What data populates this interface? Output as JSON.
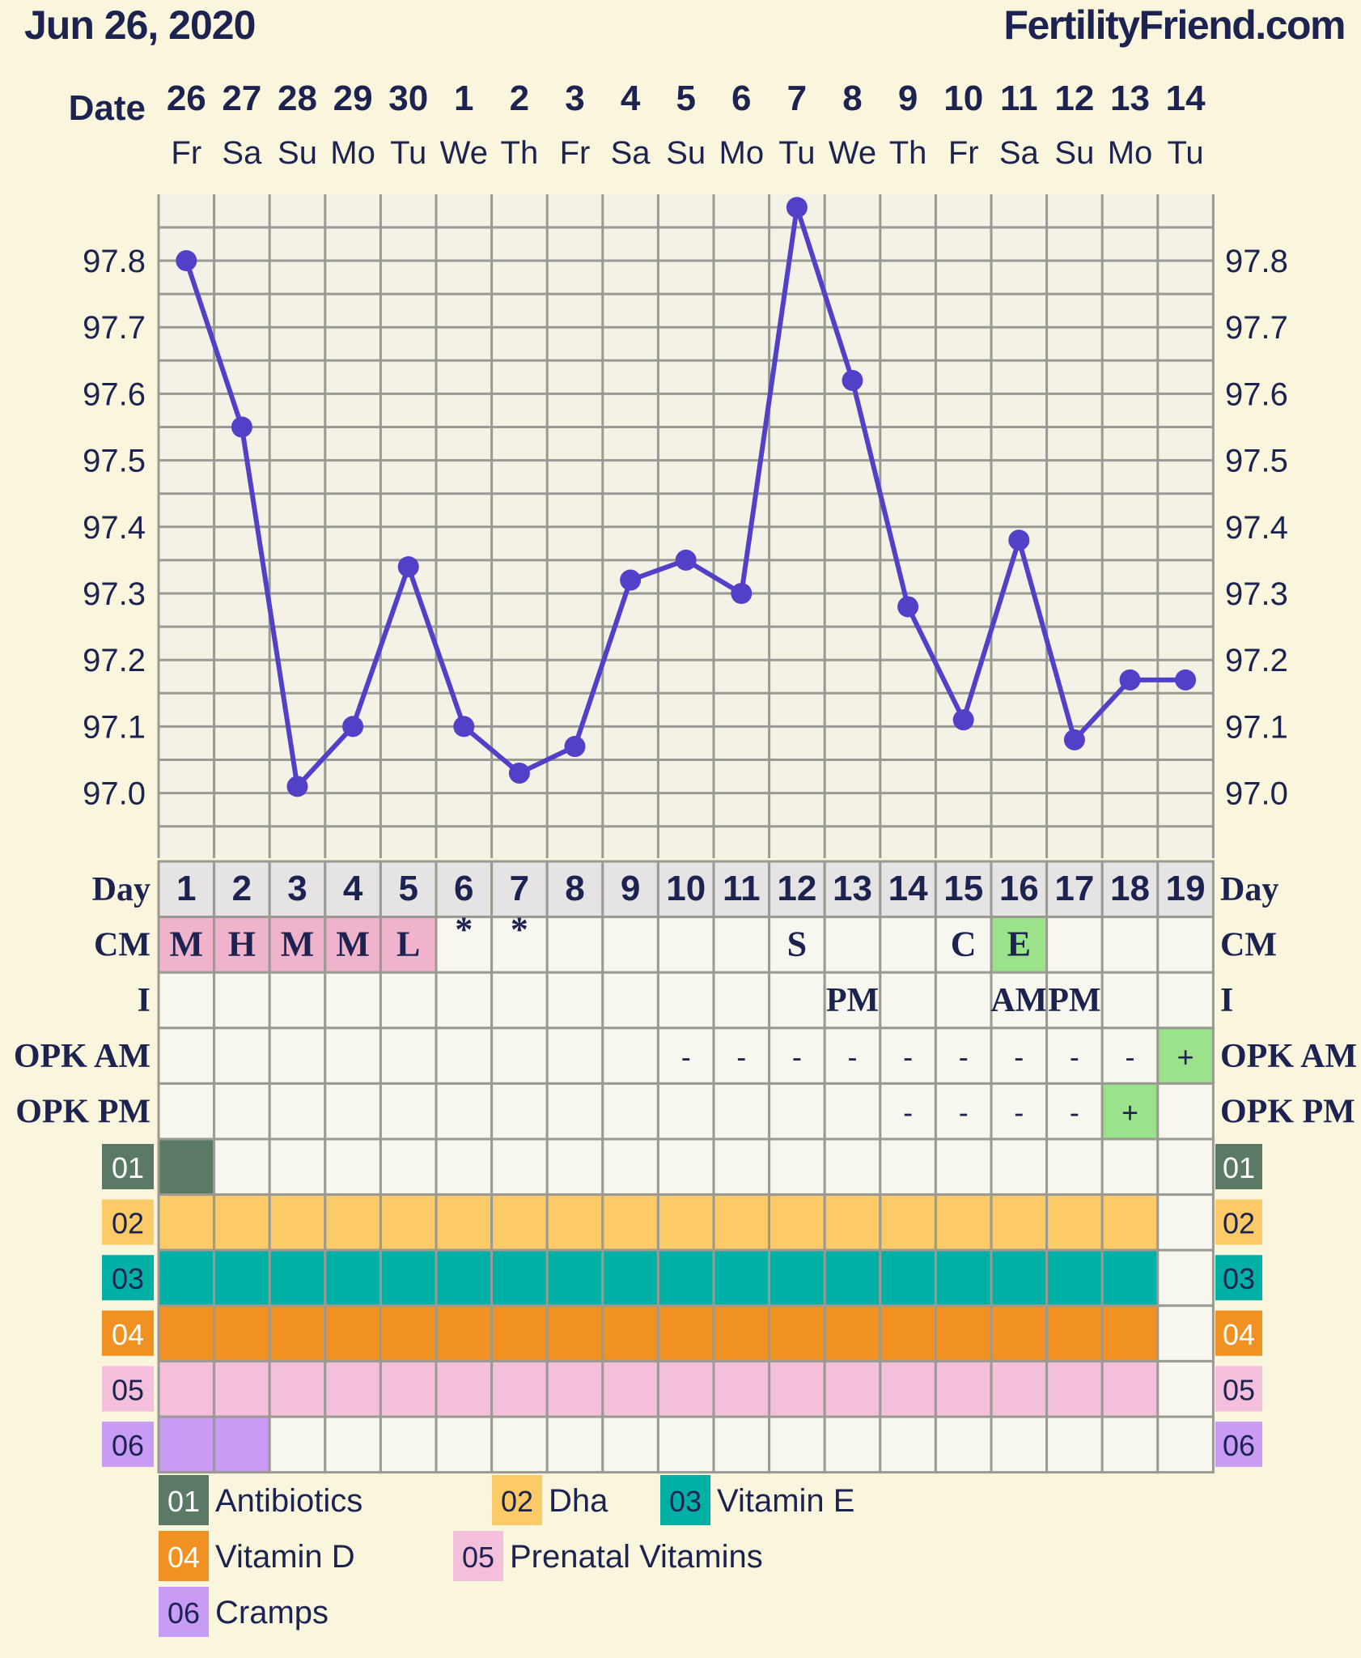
{
  "header": {
    "date": "Jun 26, 2020",
    "site": "FertilityFriend.com"
  },
  "labels": {
    "date": "Date",
    "day": "Day",
    "cm": "CM",
    "intercourse": "I",
    "opk_am": "OPK AM",
    "opk_pm": "OPK PM"
  },
  "dates": [
    "26",
    "27",
    "28",
    "29",
    "30",
    "1",
    "2",
    "3",
    "4",
    "5",
    "6",
    "7",
    "8",
    "9",
    "10",
    "11",
    "12",
    "13",
    "14"
  ],
  "weekdays": [
    "Fr",
    "Sa",
    "Su",
    "Mo",
    "Tu",
    "We",
    "Th",
    "Fr",
    "Sa",
    "Su",
    "Mo",
    "Tu",
    "We",
    "Th",
    "Fr",
    "Sa",
    "Su",
    "Mo",
    "Tu"
  ],
  "cycle_days": [
    "1",
    "2",
    "3",
    "4",
    "5",
    "6",
    "7",
    "8",
    "9",
    "10",
    "11",
    "12",
    "13",
    "14",
    "15",
    "16",
    "17",
    "18",
    "19"
  ],
  "y_ticks": [
    "97.8",
    "97.7",
    "97.6",
    "97.5",
    "97.4",
    "97.3",
    "97.2",
    "97.1",
    "97.0"
  ],
  "rows": {
    "cm": [
      "M",
      "H",
      "M",
      "M",
      "L",
      "*",
      "*",
      "",
      "",
      "",
      "",
      "S",
      "",
      "",
      "C",
      "E",
      "",
      "",
      ""
    ],
    "cm_highlight": [
      "pink",
      "pink",
      "pink",
      "pink",
      "pink",
      "",
      "",
      "",
      "",
      "",
      "",
      "",
      "",
      "",
      "",
      "green",
      "",
      "",
      ""
    ],
    "intercourse": [
      "",
      "",
      "",
      "",
      "",
      "",
      "",
      "",
      "",
      "",
      "",
      "",
      "PM",
      "",
      "",
      "AM",
      "PM",
      "",
      ""
    ],
    "opk_am": [
      "",
      "",
      "",
      "",
      "",
      "",
      "",
      "",
      "",
      "-",
      "-",
      "-",
      "-",
      "-",
      "-",
      "-",
      "-",
      "-",
      "+"
    ],
    "opk_pm": [
      "",
      "",
      "",
      "",
      "",
      "",
      "",
      "",
      "",
      "",
      "",
      "",
      "",
      "-",
      "-",
      "-",
      "-",
      "+",
      ""
    ],
    "opk_positive_color": "#9be38a"
  },
  "colors": {
    "line": "#5340c8",
    "pink_cell": "#f0b3cc",
    "green_cell": "#9be38a",
    "day_row_bg": "#e5e3e3",
    "cell_bg": "#f7f6ef"
  },
  "legend": [
    {
      "code": "01",
      "name": "Antibiotics",
      "color": "#5a7a65",
      "text_color": "#ffffff"
    },
    {
      "code": "02",
      "name": "Dha",
      "color": "#fdca68",
      "text_color": "#1d2350"
    },
    {
      "code": "03",
      "name": "Vitamin E",
      "color": "#00b0a4",
      "text_color": "#1d2350"
    },
    {
      "code": "04",
      "name": "Vitamin D",
      "color": "#f09122",
      "text_color": "#ffffff"
    },
    {
      "code": "05",
      "name": "Prenatal Vitamins",
      "color": "#f3bfda",
      "text_color": "#1d2350"
    },
    {
      "code": "06",
      "name": "Cramps",
      "color": "#c89cf5",
      "text_color": "#1d2350"
    }
  ],
  "tracker_rows": [
    {
      "code": "01",
      "days": [
        1
      ]
    },
    {
      "code": "02",
      "days": [
        1,
        2,
        3,
        4,
        5,
        6,
        7,
        8,
        9,
        10,
        11,
        12,
        13,
        14,
        15,
        16,
        17,
        18
      ]
    },
    {
      "code": "03",
      "days": [
        1,
        2,
        3,
        4,
        5,
        6,
        7,
        8,
        9,
        10,
        11,
        12,
        13,
        14,
        15,
        16,
        17,
        18
      ]
    },
    {
      "code": "04",
      "days": [
        1,
        2,
        3,
        4,
        5,
        6,
        7,
        8,
        9,
        10,
        11,
        12,
        13,
        14,
        15,
        16,
        17,
        18
      ]
    },
    {
      "code": "05",
      "days": [
        1,
        2,
        3,
        4,
        5,
        6,
        7,
        8,
        9,
        10,
        11,
        12,
        13,
        14,
        15,
        16,
        17,
        18
      ]
    },
    {
      "code": "06",
      "days": [
        1,
        2
      ]
    }
  ],
  "chart_data": {
    "type": "line",
    "x": [
      1,
      2,
      3,
      4,
      5,
      6,
      7,
      8,
      9,
      10,
      11,
      12,
      13,
      14,
      15,
      16,
      17,
      18,
      19
    ],
    "series": [
      {
        "values": [
          97.8,
          97.55,
          97.01,
          97.1,
          97.34,
          97.1,
          97.03,
          97.07,
          97.32,
          97.35,
          97.3,
          97.88,
          97.62,
          97.28,
          97.11,
          97.38,
          97.08,
          97.17,
          97.17
        ]
      }
    ],
    "ylim": [
      96.95,
      97.9
    ],
    "grid": true
  }
}
